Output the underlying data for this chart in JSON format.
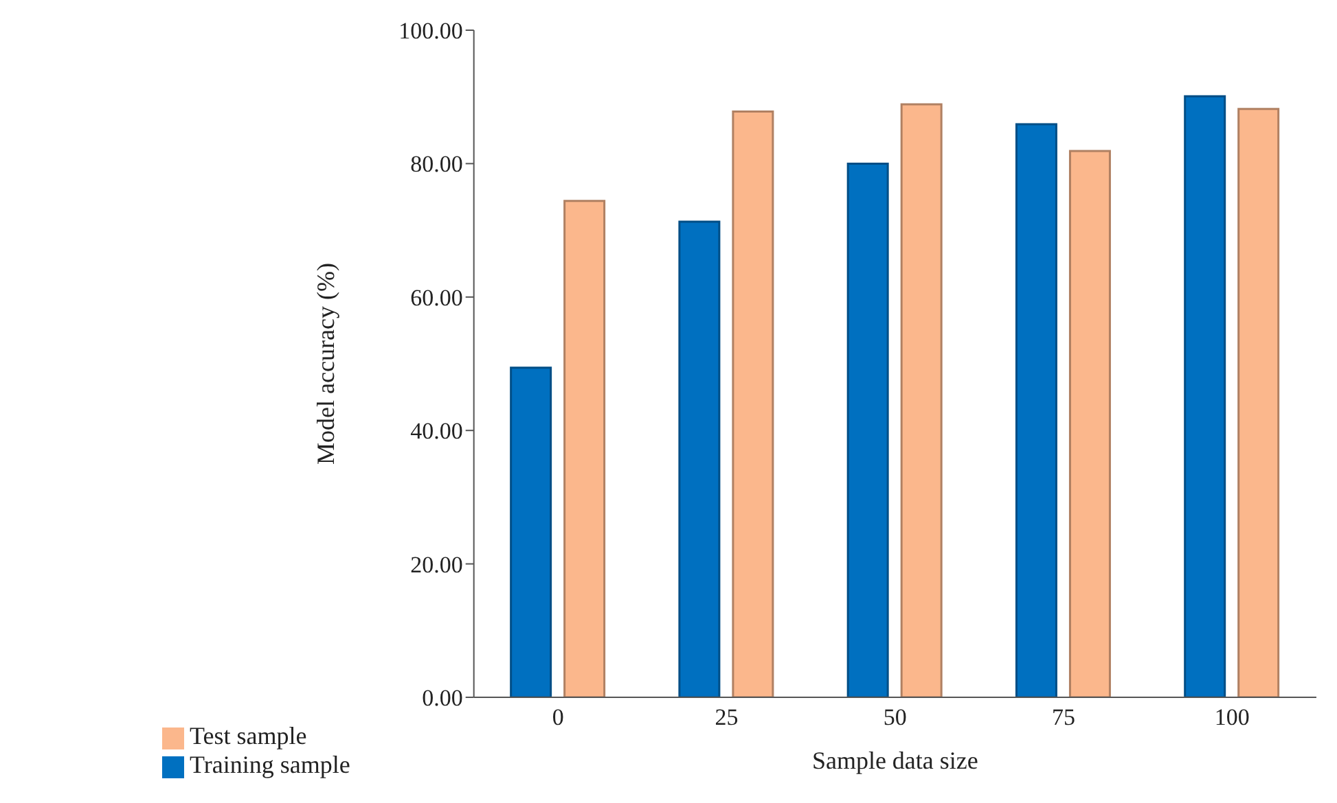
{
  "chart_data": {
    "type": "bar",
    "xlabel": "Sample data size",
    "ylabel": "Model accuracy (%)",
    "categories": [
      "0",
      "25",
      "50",
      "75",
      "100"
    ],
    "series": [
      {
        "name": "Training sample",
        "color": "#0070c0",
        "values": [
          49.4,
          71.3,
          80.0,
          85.9,
          90.1
        ]
      },
      {
        "name": "Test sample",
        "color": "#fbb78c",
        "values": [
          74.4,
          87.8,
          88.9,
          81.9,
          88.2
        ]
      }
    ],
    "ylim": [
      0,
      100
    ],
    "yticks": [
      {
        "value": 0,
        "label": "0.00"
      },
      {
        "value": 20,
        "label": "20.00"
      },
      {
        "value": 40,
        "label": "40.00"
      },
      {
        "value": 60,
        "label": "60.00"
      },
      {
        "value": 80,
        "label": "80.00"
      },
      {
        "value": 100,
        "label": "100.00"
      }
    ],
    "grid": false,
    "legend": "bottom left"
  }
}
